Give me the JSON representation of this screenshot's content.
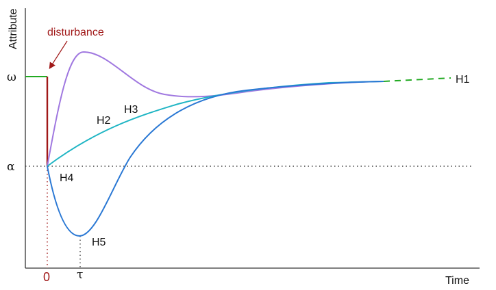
{
  "diagram": {
    "y_axis_label": "Attribute",
    "x_axis_label": "Time",
    "levels": {
      "omega": "ω",
      "alpha": "α"
    },
    "time_marks": {
      "zero": "0",
      "tau": "τ"
    },
    "annotation": "disturbance",
    "curves": [
      {
        "id": "H1",
        "label": "H1",
        "color": "#22aa22",
        "style": "dashed"
      },
      {
        "id": "H2",
        "label": "H2",
        "color": "#1fb5c4"
      },
      {
        "id": "H3",
        "label": "H3",
        "color": "#a078e0"
      },
      {
        "id": "H4",
        "label": "H4",
        "color": "#2a78d4"
      },
      {
        "id": "H5",
        "label": "H5",
        "color": "#2a78d4"
      }
    ],
    "colors": {
      "pre_disturbance": "#22aa22",
      "disturbance": "#a01818",
      "overshoot_curve": "#a078e0",
      "monotone_curve": "#1fb5c4",
      "undershoot_curve": "#2a78d4"
    }
  }
}
